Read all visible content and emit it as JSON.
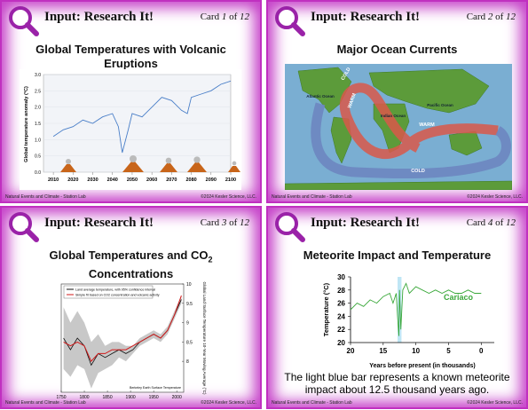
{
  "cards": [
    {
      "header": "Input: Research It!",
      "card_word": "Card",
      "number": 1,
      "of_word": "of",
      "total": 12,
      "title": "Global Temperatures with Volcanic Eruptions",
      "chart_data": {
        "type": "line",
        "y_label": "Global temperature anomaly (°C)",
        "color": "#4a7fc8",
        "x": [
          2010,
          2015,
          2020,
          2025,
          2030,
          2035,
          2040,
          2043,
          2045,
          2048,
          2050,
          2055,
          2060,
          2065,
          2070,
          2075,
          2078,
          2080,
          2085,
          2090,
          2095,
          2100
        ],
        "values": [
          1.1,
          1.3,
          1.4,
          1.6,
          1.5,
          1.7,
          1.8,
          1.4,
          0.6,
          1.3,
          1.8,
          1.7,
          2.0,
          2.3,
          2.2,
          1.9,
          1.8,
          2.3,
          2.4,
          2.5,
          2.7,
          2.8
        ],
        "xlim": [
          2005,
          2100
        ],
        "ylim": [
          0,
          3
        ],
        "xticks": [
          2010,
          2020,
          2030,
          2040,
          2050,
          2060,
          2070,
          2080,
          2090,
          2100
        ],
        "yticks": [
          {
            "value": 0,
            "label": "0.0"
          },
          {
            "value": 0.5,
            "label": "0.5"
          },
          {
            "value": 1,
            "label": "1.0"
          },
          {
            "value": 1.5,
            "label": "1.5"
          },
          {
            "value": 2,
            "label": "2.0"
          },
          {
            "value": 2.5,
            "label": "2.5"
          },
          {
            "value": 3,
            "label": "3.0"
          }
        ]
      },
      "footer_left": "Natural Events and Climate - Station Lab",
      "footer_right": "©2024 Kesler Science, LLC."
    },
    {
      "header": "Input: Research It!",
      "card_word": "Card",
      "number": 2,
      "of_word": "of",
      "total": 12,
      "title": "Major Ocean Currents",
      "map_labels": {
        "cold_1": "COLD",
        "warm_1": "WARM",
        "atlantic": "Atlantic Ocean",
        "indian": "Indian Ocean",
        "pacific": "Pacific Ocean",
        "warm_2": "WARM",
        "cold_2": "COLD"
      },
      "footer_left": "Natural Events and Climate - Station Lab",
      "footer_right": "©2024 Kesler Science, LLC."
    },
    {
      "header": "Input: Research It!",
      "card_word": "Card",
      "number": 3,
      "of_word": "of",
      "total": 12,
      "title": "Global Temperatures and CO",
      "title_sub": "2",
      "title_end": "Concentrations",
      "chart_data": {
        "type": "line",
        "y_label": "Global Land Surface Temperature 10-Year Moving Average (°C)",
        "source": "Berkeley Earth Surface Temperature",
        "x": [
          1755,
          1770,
          1785,
          1800,
          1815,
          1830,
          1845,
          1860,
          1875,
          1890,
          1905,
          1920,
          1935,
          1950,
          1965,
          1980,
          1995,
          2010
        ],
        "ci_low": [
          7.8,
          7.6,
          7.9,
          7.8,
          7.3,
          7.7,
          7.8,
          7.9,
          8.1,
          8.0,
          8.2,
          8.4,
          8.5,
          8.6,
          8.5,
          8.7,
          9.1,
          9.5
        ],
        "ci_high": [
          9.4,
          9.0,
          9.3,
          9.0,
          8.5,
          8.7,
          8.4,
          8.5,
          8.5,
          8.4,
          8.4,
          8.6,
          8.7,
          8.8,
          8.7,
          8.9,
          9.3,
          9.7
        ],
        "series": [
          {
            "name": "Land average temperature, with 95% confidence interval",
            "color": "#111111",
            "values": [
              8.6,
              8.3,
              8.6,
              8.4,
              7.9,
              8.2,
              8.1,
              8.2,
              8.3,
              8.2,
              8.3,
              8.5,
              8.6,
              8.7,
              8.6,
              8.8,
              9.2,
              9.6
            ]
          },
          {
            "name": "Simple fit based on CO2 concentration and volcanic activity",
            "color": "#d11a1a",
            "values": [
              8.5,
              8.4,
              8.5,
              8.4,
              8.0,
              8.2,
              8.2,
              8.3,
              8.3,
              8.3,
              8.4,
              8.5,
              8.6,
              8.7,
              8.6,
              8.8,
              9.2,
              9.7
            ]
          }
        ],
        "xlim": [
          1750,
          2015
        ],
        "ylim": [
          7.2,
          10
        ],
        "xticks": [
          1750,
          1800,
          1850,
          1900,
          1950,
          2000
        ],
        "yticks": [
          8,
          8.5,
          9,
          9.5,
          10
        ]
      },
      "footer_left": "Natural Events and Climate - Station Lab",
      "footer_right": "©2024 Kesler Science, LLC."
    },
    {
      "header": "Input: Research It!",
      "card_word": "Card",
      "number": 4,
      "of_word": "of",
      "total": 12,
      "title": "Meteorite Impact and Temperature",
      "chart_data": {
        "type": "line",
        "y_label": "Temperature (°C)",
        "x_label": "Years before present (in thousands)",
        "highlight_x": [
          12.8,
          12.2
        ],
        "x": [
          20,
          19,
          18,
          17,
          16,
          15,
          14,
          13.5,
          13,
          12.8,
          12.6,
          12.5,
          12.3,
          12,
          11.5,
          11,
          10,
          9,
          8,
          7,
          6,
          5,
          4,
          3,
          2,
          1,
          0
        ],
        "series": [
          {
            "name": "Cariaco",
            "color": "#3aa83a",
            "values": [
              25,
              26,
              25.5,
              26.5,
              26,
              27,
              27.5,
              26,
              27.5,
              24,
              21,
              28,
              22,
              28,
              29,
              27.5,
              28.5,
              28,
              27.5,
              28,
              27.5,
              28,
              27.5,
              27.5,
              28,
              27.5,
              27.5
            ]
          }
        ],
        "xlim": [
          20,
          -2
        ],
        "ylim": [
          20,
          30
        ],
        "xticks": [
          20,
          15,
          10,
          5,
          0
        ],
        "yticks": [
          20,
          22,
          24,
          26,
          28,
          30
        ]
      },
      "caption": "The light blue bar represents a known meteorite impact about 12.5 thousand years ago.",
      "footer_left": "Natural Events and Climate - Station Lab",
      "footer_right": "©2024 Kesler Science, LLC."
    }
  ]
}
